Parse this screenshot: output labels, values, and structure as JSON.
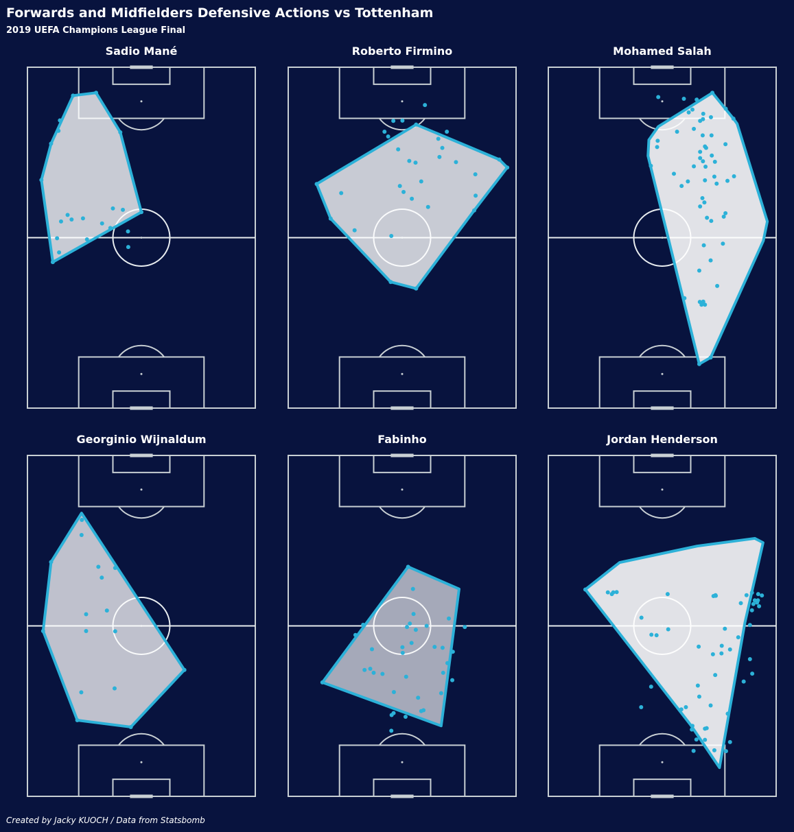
{
  "header": {
    "title": "Forwards and Midfielders Defensive Actions vs Tottenham",
    "subtitle": "2019 UEFA Champions League Final"
  },
  "footer": {
    "credit": "Created by Jacky KUOCH / Data from Statsbomb"
  },
  "colors": {
    "background": "#08133e",
    "pitch_lines": "#c9d0d4",
    "halfway_line": "#e8ecef",
    "points": "#2cb1d8",
    "hull_edge": "#2cb1d8",
    "hull_fill": "#ffffff"
  },
  "chart_data": [
    {
      "type": "scatter",
      "title": "Sadio Mané",
      "x_range": [
        0,
        80
      ],
      "y_range": [
        0,
        120
      ],
      "hull_opacity": 0.78,
      "points": [
        [
          11.4,
          101.3
        ],
        [
          8.3,
          93.1
        ],
        [
          4.9,
          80.3
        ],
        [
          8.9,
          51.4
        ],
        [
          16.0,
          110.0
        ],
        [
          24.1,
          111.0
        ],
        [
          32.6,
          97.1
        ],
        [
          40.0,
          69.0
        ],
        [
          11.8,
          65.7
        ],
        [
          14.1,
          68.0
        ],
        [
          19.5,
          66.8
        ],
        [
          29.1,
          63.4
        ],
        [
          35.4,
          56.7
        ],
        [
          35.3,
          62.2
        ],
        [
          20.9,
          59.4
        ],
        [
          10.9,
          97.6
        ],
        [
          30.0,
          70.3
        ],
        [
          11.1,
          54.8
        ],
        [
          15.5,
          66.4
        ],
        [
          33.5,
          69.8
        ],
        [
          10.4,
          59.8
        ],
        [
          26.2,
          65.0
        ]
      ],
      "hull": [
        [
          16.0,
          110.0
        ],
        [
          24.1,
          111.0
        ],
        [
          32.6,
          97.1
        ],
        [
          40.0,
          69.0
        ],
        [
          8.9,
          51.4
        ],
        [
          4.9,
          80.3
        ],
        [
          8.3,
          93.1
        ]
      ]
    },
    {
      "type": "scatter",
      "title": "Roberto Firmino",
      "x_range": [
        0,
        80
      ],
      "y_range": [
        0,
        120
      ],
      "hull_opacity": 0.78,
      "points": [
        [
          44.9,
          99.8
        ],
        [
          36.9,
          101.1
        ],
        [
          35.1,
          95.6
        ],
        [
          40.1,
          101.2
        ],
        [
          48.0,
          106.7
        ],
        [
          74.1,
          87.5
        ],
        [
          76.9,
          84.7
        ],
        [
          55.7,
          97.3
        ],
        [
          52.7,
          94.8
        ],
        [
          44.7,
          86.4
        ],
        [
          58.9,
          86.6
        ],
        [
          39.2,
          78.2
        ],
        [
          65.7,
          82.3
        ],
        [
          10.0,
          78.9
        ],
        [
          18.6,
          75.7
        ],
        [
          40.5,
          76.1
        ],
        [
          43.4,
          73.7
        ],
        [
          53.1,
          88.4
        ],
        [
          54.1,
          91.6
        ],
        [
          46.7,
          79.8
        ],
        [
          65.3,
          69.6
        ],
        [
          23.3,
          62.6
        ],
        [
          65.8,
          74.8
        ],
        [
          49.1,
          70.8
        ],
        [
          36.2,
          60.6
        ],
        [
          14.9,
          66.7
        ],
        [
          36.0,
          44.4
        ],
        [
          44.9,
          42.1
        ],
        [
          42.5,
          87.0
        ],
        [
          33.8,
          97.3
        ],
        [
          38.6,
          91.1
        ]
      ],
      "hull": [
        [
          44.9,
          99.8
        ],
        [
          74.1,
          87.5
        ],
        [
          76.9,
          84.7
        ],
        [
          65.3,
          69.6
        ],
        [
          44.9,
          42.1
        ],
        [
          36.0,
          44.4
        ],
        [
          14.9,
          66.7
        ],
        [
          10.0,
          78.9
        ]
      ]
    },
    {
      "type": "scatter",
      "title": "Mohamed Salah",
      "x_range": [
        0,
        80
      ],
      "y_range": [
        0,
        120
      ],
      "hull_opacity": 0.88,
      "points": [
        [
          57.6,
          111.0
        ],
        [
          54.3,
          101.7
        ],
        [
          57.1,
          102.4
        ],
        [
          47.6,
          108.9
        ],
        [
          49.3,
          104.1
        ],
        [
          50.6,
          105.1
        ],
        [
          52.1,
          108.6
        ],
        [
          62.3,
          105.4
        ],
        [
          65.0,
          101.9
        ],
        [
          38.6,
          109.5
        ],
        [
          36.0,
          85.3
        ],
        [
          38.2,
          91.9
        ],
        [
          38.4,
          94.1
        ],
        [
          55.0,
          92.1
        ],
        [
          44.1,
          82.5
        ],
        [
          46.8,
          78.2
        ],
        [
          55.0,
          80.2
        ],
        [
          59.1,
          79.0
        ],
        [
          57.2,
          65.9
        ],
        [
          65.2,
          81.6
        ],
        [
          62.9,
          80.0
        ],
        [
          54.1,
          73.9
        ],
        [
          53.3,
          71.0
        ],
        [
          55.7,
          67.0
        ],
        [
          61.3,
          57.9
        ],
        [
          54.6,
          57.3
        ],
        [
          57.0,
          52.0
        ],
        [
          53.0,
          48.4
        ],
        [
          59.3,
          43.0
        ],
        [
          47.8,
          38.7
        ],
        [
          54.4,
          37.5
        ],
        [
          53.8,
          36.4
        ],
        [
          55.0,
          36.4
        ],
        [
          53.2,
          37.4
        ],
        [
          53.0,
          15.5
        ],
        [
          57.0,
          17.8
        ],
        [
          45.2,
          97.3
        ],
        [
          51.1,
          98.3
        ],
        [
          55.4,
          91.6
        ],
        [
          51.1,
          85.1
        ],
        [
          61.6,
          67.4
        ],
        [
          54.8,
          72.4
        ],
        [
          49.0,
          79.8
        ],
        [
          58.3,
          81.5
        ],
        [
          53.3,
          101.1
        ],
        [
          53.3,
          88.0
        ],
        [
          54.3,
          86.9
        ],
        [
          58.5,
          86.7
        ],
        [
          53.3,
          90.2
        ],
        [
          62.2,
          92.9
        ],
        [
          54.2,
          96.0
        ],
        [
          54.4,
          103.6
        ],
        [
          57.3,
          96.0
        ],
        [
          57.4,
          88.9
        ],
        [
          55.2,
          85.0
        ],
        [
          62.2,
          68.6
        ]
      ],
      "hull": [
        [
          57.6,
          111.0
        ],
        [
          65.0,
          101.9
        ],
        [
          66.3,
          100.1
        ],
        [
          76.9,
          65.7
        ],
        [
          75.5,
          58.9
        ],
        [
          57.0,
          17.8
        ],
        [
          53.0,
          15.5
        ],
        [
          35.0,
          88.8
        ],
        [
          35.3,
          94.4
        ],
        [
          38.6,
          99.1
        ]
      ]
    },
    {
      "type": "scatter",
      "title": "Georginio Wijnaldum",
      "x_range": [
        0,
        80
      ],
      "y_range": [
        0,
        120
      ],
      "hull_opacity": 0.74,
      "points": [
        [
          19.1,
          97.3
        ],
        [
          8.3,
          82.5
        ],
        [
          24.9,
          80.8
        ],
        [
          30.8,
          80.4
        ],
        [
          26.1,
          77.0
        ],
        [
          20.6,
          64.1
        ],
        [
          27.9,
          65.4
        ],
        [
          20.6,
          58.2
        ],
        [
          30.8,
          58.1
        ],
        [
          18.9,
          36.6
        ],
        [
          30.6,
          38.0
        ],
        [
          55.1,
          44.5
        ],
        [
          36.3,
          24.4
        ],
        [
          17.5,
          26.8
        ],
        [
          5.5,
          58.2
        ],
        [
          19.0,
          92.0
        ]
      ],
      "hull": [
        [
          19.0,
          99.7
        ],
        [
          55.1,
          44.5
        ],
        [
          36.3,
          24.4
        ],
        [
          17.5,
          26.8
        ],
        [
          5.5,
          58.2
        ],
        [
          8.3,
          82.5
        ]
      ]
    },
    {
      "type": "scatter",
      "title": "Fabinho",
      "x_range": [
        0,
        80
      ],
      "y_range": [
        0,
        120
      ],
      "hull_opacity": 0.64,
      "points": [
        [
          42.1,
          80.8
        ],
        [
          43.8,
          73.0
        ],
        [
          56.4,
          62.6
        ],
        [
          44.0,
          64.2
        ],
        [
          42.7,
          60.8
        ],
        [
          41.7,
          59.6
        ],
        [
          62.0,
          59.6
        ],
        [
          26.3,
          60.4
        ],
        [
          23.6,
          56.8
        ],
        [
          40.1,
          52.5
        ],
        [
          51.4,
          52.6
        ],
        [
          55.9,
          46.9
        ],
        [
          26.8,
          44.5
        ],
        [
          28.8,
          44.9
        ],
        [
          37.1,
          36.7
        ],
        [
          41.2,
          28.0
        ],
        [
          57.6,
          40.9
        ],
        [
          46.7,
          30.0
        ],
        [
          37.0,
          29.3
        ],
        [
          36.2,
          23.1
        ],
        [
          36.3,
          28.6
        ],
        [
          30.0,
          43.5
        ],
        [
          48.6,
          60.0
        ],
        [
          53.7,
          36.3
        ],
        [
          12.0,
          40.1
        ],
        [
          47.5,
          30.3
        ],
        [
          45.6,
          34.7
        ],
        [
          41.4,
          42.1
        ],
        [
          44.8,
          58.6
        ],
        [
          43.3,
          54.0
        ],
        [
          40.2,
          50.5
        ],
        [
          33.1,
          43.1
        ],
        [
          54.4,
          43.5
        ],
        [
          54.2,
          52.3
        ],
        [
          29.4,
          51.8
        ],
        [
          57.8,
          50.9
        ]
      ],
      "hull": [
        [
          42.1,
          80.8
        ],
        [
          60.0,
          73.0
        ],
        [
          53.7,
          24.8
        ],
        [
          12.0,
          40.1
        ]
      ]
    },
    {
      "type": "scatter",
      "title": "Jordan Henderson",
      "x_range": [
        0,
        80
      ],
      "y_range": [
        0,
        120
      ],
      "hull_opacity": 0.88,
      "points": [
        [
          73.3,
          68.2
        ],
        [
          69.6,
          70.8
        ],
        [
          71.5,
          71.7
        ],
        [
          75.0,
          70.7
        ],
        [
          41.9,
          71.2
        ],
        [
          58.8,
          70.6
        ],
        [
          72.5,
          69.0
        ],
        [
          73.7,
          71.2
        ],
        [
          20.9,
          71.8
        ],
        [
          22.8,
          71.8
        ],
        [
          58.0,
          70.5
        ],
        [
          13.0,
          72.8
        ],
        [
          24.0,
          71.9
        ],
        [
          22.3,
          71.2
        ],
        [
          58.7,
          70.8
        ],
        [
          73.6,
          69.0
        ],
        [
          70.8,
          60.3
        ],
        [
          67.6,
          68.0
        ],
        [
          74.0,
          66.9
        ],
        [
          71.5,
          65.5
        ],
        [
          32.7,
          62.9
        ],
        [
          57.8,
          50.0
        ],
        [
          36.2,
          56.9
        ],
        [
          38.0,
          56.7
        ],
        [
          68.6,
          40.4
        ],
        [
          63.0,
          29.1
        ],
        [
          51.0,
          16.0
        ],
        [
          58.3,
          16.2
        ],
        [
          55.6,
          24.0
        ],
        [
          53.0,
          35.1
        ],
        [
          46.7,
          30.6
        ],
        [
          52.0,
          20.0
        ],
        [
          62.4,
          15.9
        ],
        [
          55.0,
          23.8
        ],
        [
          63.8,
          19.1
        ],
        [
          55.0,
          19.9
        ],
        [
          50.6,
          24.8
        ],
        [
          50.4,
          23.5
        ],
        [
          57.0,
          32.0
        ],
        [
          58.6,
          42.7
        ],
        [
          52.5,
          39.0
        ],
        [
          36.1,
          38.6
        ],
        [
          32.6,
          31.4
        ],
        [
          48.3,
          31.4
        ],
        [
          60.8,
          50.3
        ],
        [
          63.8,
          51.7
        ],
        [
          52.8,
          52.7
        ],
        [
          70.8,
          48.3
        ],
        [
          60.9,
          53.0
        ],
        [
          42.1,
          58.8
        ],
        [
          62.0,
          59.0
        ],
        [
          66.7,
          56.0
        ],
        [
          71.6,
          43.2
        ],
        [
          72.0,
          67.7
        ]
      ],
      "hull": [
        [
          13.0,
          72.8
        ],
        [
          25.0,
          82.3
        ],
        [
          52.3,
          88.1
        ],
        [
          72.5,
          90.8
        ],
        [
          75.4,
          89.3
        ],
        [
          69.0,
          61.0
        ],
        [
          60.1,
          10.1
        ],
        [
          50.0,
          25.1
        ]
      ]
    }
  ]
}
